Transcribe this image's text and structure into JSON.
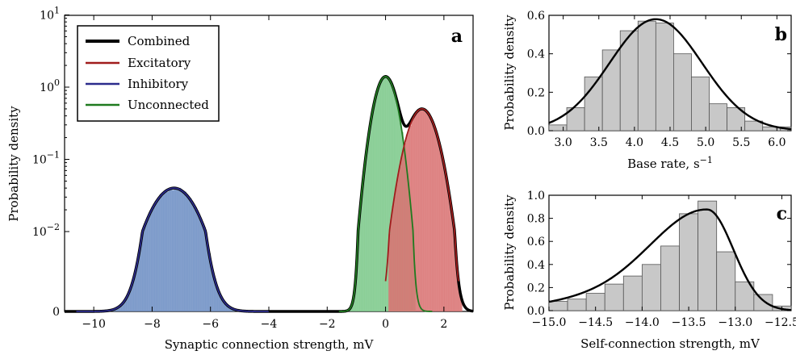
{
  "chart_data": [
    {
      "panel": "a",
      "type": "area",
      "xlabel": "Synaptic connection strength, mV",
      "ylabel": "Probability density",
      "xlim": [
        -11,
        3
      ],
      "yscale": "symlog",
      "x_ticks": [
        -10,
        -8,
        -6,
        -4,
        -2,
        0,
        2
      ],
      "x_tick_labels": [
        "−10",
        "−8",
        "−6",
        "−4",
        "−2",
        "0",
        "2"
      ],
      "y_ticks": [
        {
          "value": 0,
          "base": "0",
          "exp": ""
        },
        {
          "value": 0.01,
          "base": "10",
          "exp": "−2"
        },
        {
          "value": 0.1,
          "base": "10",
          "exp": "−1"
        },
        {
          "value": 1,
          "base": "10",
          "exp": "0"
        },
        {
          "value": 10,
          "base": "10",
          "exp": "1"
        }
      ],
      "legend_position": "top-left",
      "series": [
        {
          "name": "Combined",
          "color": "#000000",
          "kind": "line"
        },
        {
          "name": "Excitatory",
          "color": "#a01c1c",
          "kind": "line+hist",
          "fill": "#d97373",
          "mean": 1.25,
          "sd": 0.4,
          "peak": 0.5
        },
        {
          "name": "Inhibitory",
          "color": "#2b2b8c",
          "kind": "line+hist",
          "fill": "#6f8fc4",
          "mean": -7.25,
          "sd": 0.65,
          "peak": 0.04
        },
        {
          "name": "Unconnected",
          "color": "#1f7a1f",
          "kind": "line+hist",
          "fill": "#7cc98b",
          "mean": 0.0,
          "sd": 0.3,
          "peak": 1.4
        }
      ]
    },
    {
      "panel": "b",
      "type": "bar",
      "xlabel_text": "Base rate, s",
      "xlabel_sup": "−1",
      "ylabel": "Probability density",
      "xlim": [
        2.8,
        6.2
      ],
      "ylim": [
        0,
        0.6
      ],
      "x_ticks": [
        3.0,
        3.5,
        4.0,
        4.5,
        5.0,
        5.5,
        6.0
      ],
      "x_tick_labels": [
        "3.0",
        "3.5",
        "4.0",
        "4.5",
        "5.0",
        "5.5",
        "6.0"
      ],
      "y_ticks": [
        0.0,
        0.2,
        0.4,
        0.6
      ],
      "y_tick_labels": [
        "0.0",
        "0.2",
        "0.4",
        "0.6"
      ],
      "bin_edges": [
        2.8,
        3.05,
        3.3,
        3.55,
        3.8,
        4.05,
        4.3,
        4.55,
        4.8,
        5.05,
        5.3,
        5.55,
        5.8,
        6.05,
        6.2
      ],
      "values": [
        0.03,
        0.12,
        0.28,
        0.42,
        0.52,
        0.57,
        0.56,
        0.4,
        0.28,
        0.14,
        0.12,
        0.05,
        0.02,
        0.02
      ],
      "curve": {
        "mean": 4.3,
        "sd": 0.65,
        "peak": 0.58
      },
      "bar_fill": "#c8c8c8"
    },
    {
      "panel": "c",
      "type": "bar",
      "xlabel": "Self-connection strength, mV",
      "ylabel": "Probability density",
      "xlim": [
        -15.0,
        -12.4
      ],
      "ylim": [
        0,
        1.0
      ],
      "x_ticks": [
        -15.0,
        -14.5,
        -14.0,
        -13.5,
        -13.0,
        -12.5
      ],
      "x_tick_labels": [
        "−15.0",
        "−14.5",
        "−14.0",
        "−13.5",
        "−13.0",
        "−12.5"
      ],
      "y_ticks": [
        0.0,
        0.2,
        0.4,
        0.6,
        0.8,
        1.0
      ],
      "y_tick_labels": [
        "0.0",
        "0.2",
        "0.4",
        "0.6",
        "0.8",
        "1.0"
      ],
      "bin_edges": [
        -15.0,
        -14.8,
        -14.6,
        -14.4,
        -14.2,
        -14.0,
        -13.8,
        -13.6,
        -13.4,
        -13.2,
        -13.0,
        -12.8,
        -12.6,
        -12.4
      ],
      "values": [
        0.08,
        0.1,
        0.15,
        0.23,
        0.3,
        0.4,
        0.56,
        0.84,
        0.95,
        0.51,
        0.25,
        0.14,
        0.04
      ],
      "curve": {
        "skewnormal": true,
        "peak": 0.87
      },
      "bar_fill": "#c8c8c8"
    }
  ]
}
